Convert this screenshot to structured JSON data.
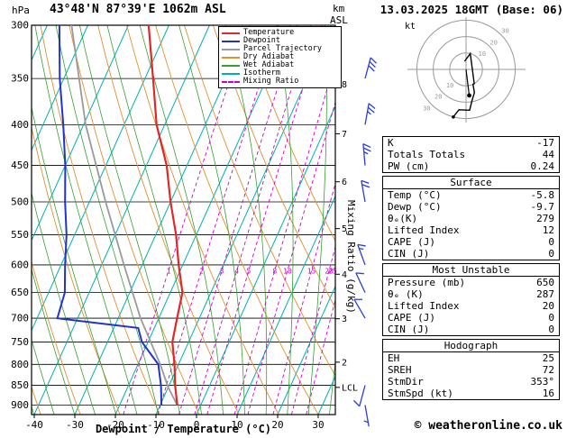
{
  "header": {
    "pressure_unit": "hPa",
    "title": "43°48'N 87°39'E 1062m ASL",
    "km_line1": "km",
    "km_line2": "ASL",
    "date": "13.03.2025 18GMT (Base: 06)"
  },
  "axes": {
    "xlabel": "Dewpoint / Temperature (°C)",
    "right_label": "Mixing Ratio (g/kg)",
    "pressure_ticks": [
      300,
      350,
      400,
      450,
      500,
      550,
      600,
      650,
      700,
      750,
      800,
      850,
      900
    ],
    "temp_ticks": [
      -40,
      -30,
      -20,
      -10,
      0,
      10,
      20,
      30
    ],
    "km_ticks": [
      2,
      3,
      4,
      5,
      6,
      7,
      8
    ],
    "lcl_label": "LCL"
  },
  "legend": {
    "items": [
      {
        "label": "Temperature",
        "color": "#e02828",
        "dash": "solid"
      },
      {
        "label": "Dewpoint",
        "color": "#2233cc",
        "dash": "solid"
      },
      {
        "label": "Parcel Trajectory",
        "color": "#9a9a9a",
        "dash": "solid"
      },
      {
        "label": "Dry Adiabat",
        "color": "#e09030",
        "dash": "solid"
      },
      {
        "label": "Wet Adiabat",
        "color": "#33a033",
        "dash": "solid"
      },
      {
        "label": "Isotherm",
        "color": "#00b0b0",
        "dash": "solid"
      },
      {
        "label": "Mixing Ratio",
        "color": "#cc00cc",
        "dash": "dashed"
      }
    ]
  },
  "chart_data": {
    "type": "skewt-log-p",
    "pressure_range_hPa": [
      300,
      925
    ],
    "temp_range_c": [
      -40,
      34
    ],
    "temperature_profile": {
      "pressure_hPa": [
        900,
        850,
        800,
        750,
        700,
        650,
        600,
        550,
        500,
        450,
        400,
        350,
        300
      ],
      "temp_c": [
        -5.8,
        -8.5,
        -11,
        -14,
        -15.5,
        -17,
        -21,
        -25,
        -30,
        -35,
        -42,
        -48,
        -55
      ]
    },
    "dewpoint_profile": {
      "pressure_hPa": [
        900,
        850,
        800,
        750,
        720,
        700,
        650,
        600,
        550,
        500,
        450,
        400,
        350,
        300
      ],
      "temp_c": [
        -9.7,
        -12,
        -15,
        -21.5,
        -24,
        -45,
        -46,
        -49,
        -52,
        -56,
        -60,
        -65,
        -71,
        -77
      ]
    },
    "parcel_profile": {
      "pressure_hPa": [
        900,
        855,
        800,
        700,
        600,
        500,
        400,
        300
      ],
      "temp_c": [
        -5.8,
        -10,
        -14.5,
        -24.5,
        -34.5,
        -46,
        -59.5,
        -74
      ]
    },
    "lcl_pressure_hPa": 855,
    "mixing_ratio_lines_g_kg": [
      1,
      2,
      3,
      4,
      5,
      8,
      10,
      15,
      20,
      25
    ],
    "wind_barbs": [
      {
        "pressure": 900,
        "speed_kt": 5,
        "dir_deg": 170
      },
      {
        "pressure": 850,
        "speed_kt": 10,
        "dir_deg": 195
      },
      {
        "pressure": 700,
        "speed_kt": 10,
        "dir_deg": 330
      },
      {
        "pressure": 650,
        "speed_kt": 10,
        "dir_deg": 335
      },
      {
        "pressure": 600,
        "speed_kt": 15,
        "dir_deg": 340
      },
      {
        "pressure": 500,
        "speed_kt": 20,
        "dir_deg": 350
      },
      {
        "pressure": 450,
        "speed_kt": 25,
        "dir_deg": 355
      },
      {
        "pressure": 400,
        "speed_kt": 25,
        "dir_deg": 10
      },
      {
        "pressure": 350,
        "speed_kt": 30,
        "dir_deg": 15
      }
    ],
    "hodograph": {
      "unit_label": "kt",
      "rings_kt": [
        10,
        20,
        30
      ],
      "storm_dir_deg": 353,
      "storm_speed_kt": 16
    }
  },
  "tables": [
    {
      "rows": [
        {
          "label": "K",
          "value": "-17"
        },
        {
          "label": "Totals Totals",
          "value": "44"
        },
        {
          "label": "PW (cm)",
          "value": "0.24"
        }
      ]
    },
    {
      "title": "Surface",
      "rows": [
        {
          "label": "Temp (°C)",
          "value": "-5.8"
        },
        {
          "label": "Dewp (°C)",
          "value": "-9.7"
        },
        {
          "label": "θₑ(K)",
          "value": "279"
        },
        {
          "label": "Lifted Index",
          "value": "12"
        },
        {
          "label": "CAPE (J)",
          "value": "0"
        },
        {
          "label": "CIN (J)",
          "value": "0"
        }
      ]
    },
    {
      "title": "Most Unstable",
      "rows": [
        {
          "label": "Pressure (mb)",
          "value": "650"
        },
        {
          "label": "θₑ (K)",
          "value": "287"
        },
        {
          "label": "Lifted Index",
          "value": "20"
        },
        {
          "label": "CAPE (J)",
          "value": "0"
        },
        {
          "label": "CIN (J)",
          "value": "0"
        }
      ]
    },
    {
      "title": "Hodograph",
      "rows": [
        {
          "label": "EH",
          "value": "25"
        },
        {
          "label": "SREH",
          "value": "72"
        },
        {
          "label": "StmDir",
          "value": "353°"
        },
        {
          "label": "StmSpd (kt)",
          "value": "16"
        }
      ]
    }
  ],
  "footer": {
    "copyright": "© weatheronline.co.uk"
  }
}
